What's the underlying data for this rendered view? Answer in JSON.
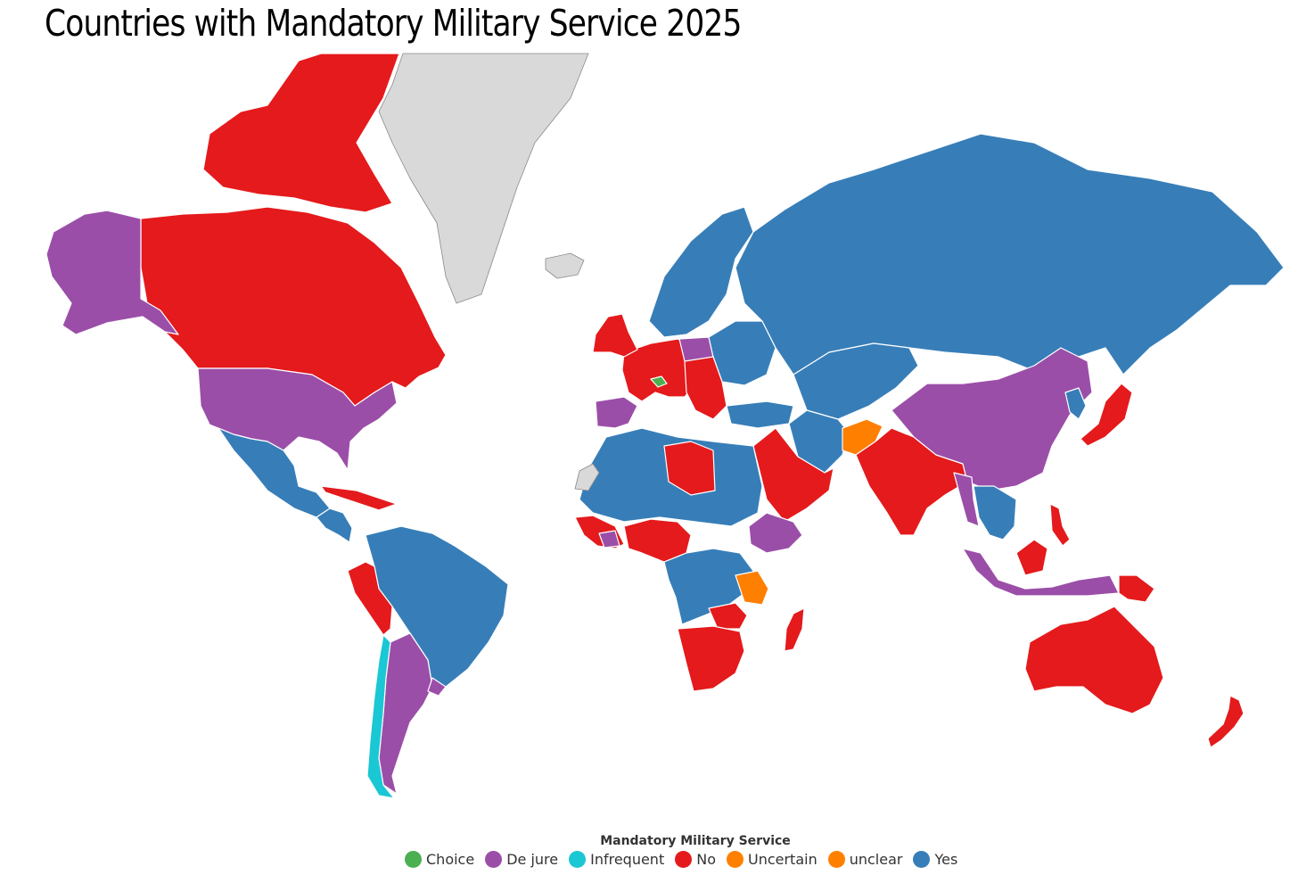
{
  "title": "Countries with Mandatory Military Service 2025",
  "legend": {
    "title": "Mandatory Military Service",
    "items": [
      {
        "key": "choice",
        "label": "Choice",
        "color": "#4caf50"
      },
      {
        "key": "dejure",
        "label": "De jure",
        "color": "#9b4ea8"
      },
      {
        "key": "infrequent",
        "label": "Infrequent",
        "color": "#1ac7d4"
      },
      {
        "key": "no",
        "label": "No",
        "color": "#e41a1c"
      },
      {
        "key": "uncertain",
        "label": "Uncertain",
        "color": "#ff7f00"
      },
      {
        "key": "unclear",
        "label": "unclear",
        "color": "#ff7f00"
      },
      {
        "key": "yes",
        "label": "Yes",
        "color": "#377eb8"
      }
    ]
  },
  "no_data_color": "#d9d9d9",
  "regions": [
    {
      "name": "Canada",
      "category": "no"
    },
    {
      "name": "Canadian Arctic Archipelago",
      "category": "no"
    },
    {
      "name": "Greenland",
      "category": "none"
    },
    {
      "name": "Iceland",
      "category": "none"
    },
    {
      "name": "Alaska",
      "category": "dejure"
    },
    {
      "name": "United States",
      "category": "dejure"
    },
    {
      "name": "Mexico",
      "category": "yes"
    },
    {
      "name": "Central America",
      "category": "yes"
    },
    {
      "name": "Caribbean",
      "category": "no"
    },
    {
      "name": "Brazil and northern South America",
      "category": "yes"
    },
    {
      "name": "Peru and Ecuador",
      "category": "no"
    },
    {
      "name": "Argentina",
      "category": "dejure"
    },
    {
      "name": "Chile",
      "category": "infrequent"
    },
    {
      "name": "Uruguay",
      "category": "dejure"
    },
    {
      "name": "Western Europe",
      "category": "no"
    },
    {
      "name": "Switzerland",
      "category": "choice"
    },
    {
      "name": "Poland",
      "category": "dejure"
    },
    {
      "name": "Iberian Peninsula",
      "category": "dejure"
    },
    {
      "name": "United Kingdom and Ireland",
      "category": "no"
    },
    {
      "name": "Scandinavia",
      "category": "yes"
    },
    {
      "name": "Eastern Europe",
      "category": "yes"
    },
    {
      "name": "Balkans",
      "category": "no"
    },
    {
      "name": "Turkey",
      "category": "yes"
    },
    {
      "name": "Russia",
      "category": "yes"
    },
    {
      "name": "Central Asia",
      "category": "yes"
    },
    {
      "name": "Iran",
      "category": "yes"
    },
    {
      "name": "Afghanistan",
      "category": "uncertain"
    },
    {
      "name": "South Asia",
      "category": "no"
    },
    {
      "name": "China",
      "category": "dejure"
    },
    {
      "name": "Myanmar",
      "category": "dejure"
    },
    {
      "name": "Indochina",
      "category": "yes"
    },
    {
      "name": "Korean Peninsula",
      "category": "yes"
    },
    {
      "name": "Japan",
      "category": "no"
    },
    {
      "name": "Philippines",
      "category": "no"
    },
    {
      "name": "Indonesia",
      "category": "dejure"
    },
    {
      "name": "Borneo",
      "category": "no"
    },
    {
      "name": "Papua New Guinea",
      "category": "no"
    },
    {
      "name": "Australia",
      "category": "no"
    },
    {
      "name": "New Zealand",
      "category": "no"
    },
    {
      "name": "Arabian Peninsula",
      "category": "no"
    },
    {
      "name": "North Africa",
      "category": "yes"
    },
    {
      "name": "Western Sahara",
      "category": "none"
    },
    {
      "name": "Libya",
      "category": "no"
    },
    {
      "name": "West Africa coast",
      "category": "no"
    },
    {
      "name": "Nigeria region",
      "category": "no"
    },
    {
      "name": "Ivory Coast",
      "category": "dejure"
    },
    {
      "name": "Ethiopia",
      "category": "dejure"
    },
    {
      "name": "Central Africa",
      "category": "yes"
    },
    {
      "name": "Tanzania",
      "category": "unclear"
    },
    {
      "name": "Zambia region",
      "category": "no"
    },
    {
      "name": "Southern Africa",
      "category": "no"
    },
    {
      "name": "Madagascar",
      "category": "no"
    }
  ]
}
